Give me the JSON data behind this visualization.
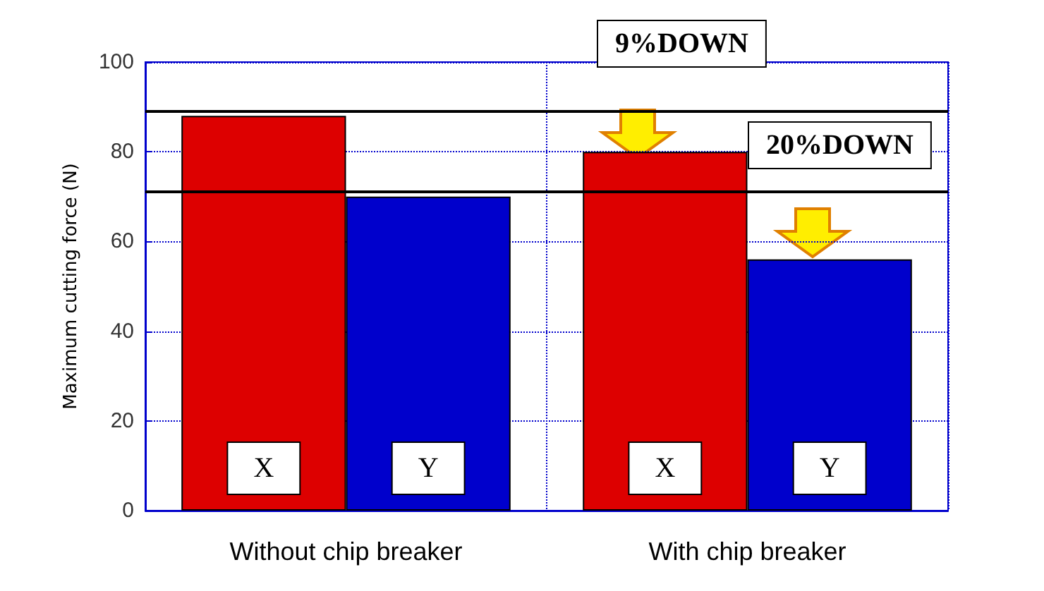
{
  "chart_data": {
    "type": "bar",
    "ylabel": "Maximum cutting force (N)",
    "categories": [
      "Without chip breaker",
      "With chip breaker"
    ],
    "series": [
      {
        "name": "X",
        "color": "#dd0000",
        "values": [
          88,
          80
        ]
      },
      {
        "name": "Y",
        "color": "#0000cc",
        "values": [
          70,
          56
        ]
      }
    ],
    "ylim": [
      0,
      100
    ],
    "yticks": [
      0,
      20,
      40,
      60,
      80,
      100
    ],
    "grid": true,
    "legend": false,
    "ref_lines": [
      {
        "axis": "y",
        "value": 89,
        "color": "#000000"
      },
      {
        "axis": "y",
        "value": 71,
        "color": "#000000"
      }
    ],
    "annotations": [
      "9%DOWN",
      "20%DOWN"
    ]
  }
}
